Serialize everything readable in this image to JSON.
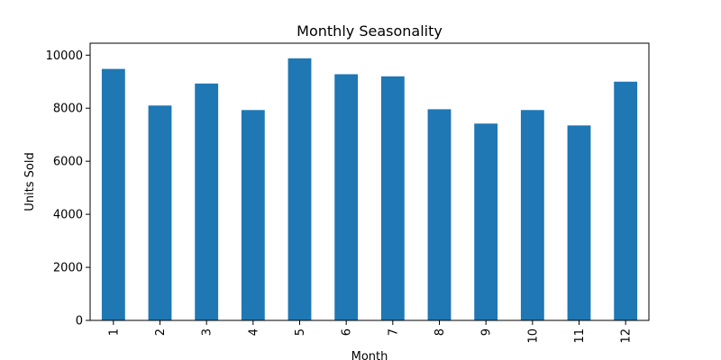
{
  "chart_data": {
    "type": "bar",
    "title": "Monthly Seasonality",
    "xlabel": "Month",
    "ylabel": "Units Sold",
    "categories": [
      "1",
      "2",
      "3",
      "4",
      "5",
      "6",
      "7",
      "8",
      "9",
      "10",
      "11",
      "12"
    ],
    "values": [
      9480,
      8100,
      8930,
      7930,
      9880,
      9280,
      9200,
      7960,
      7420,
      7930,
      7350,
      9000
    ],
    "ylim": [
      0,
      10450
    ],
    "yticks": [
      0,
      2000,
      4000,
      6000,
      8000,
      10000
    ],
    "ytick_labels": [
      "0",
      "2000",
      "4000",
      "6000",
      "8000",
      "10000"
    ],
    "bar_color": "#1f77b4",
    "grid": false,
    "legend": "none",
    "xtick_rotation": "vertical"
  }
}
